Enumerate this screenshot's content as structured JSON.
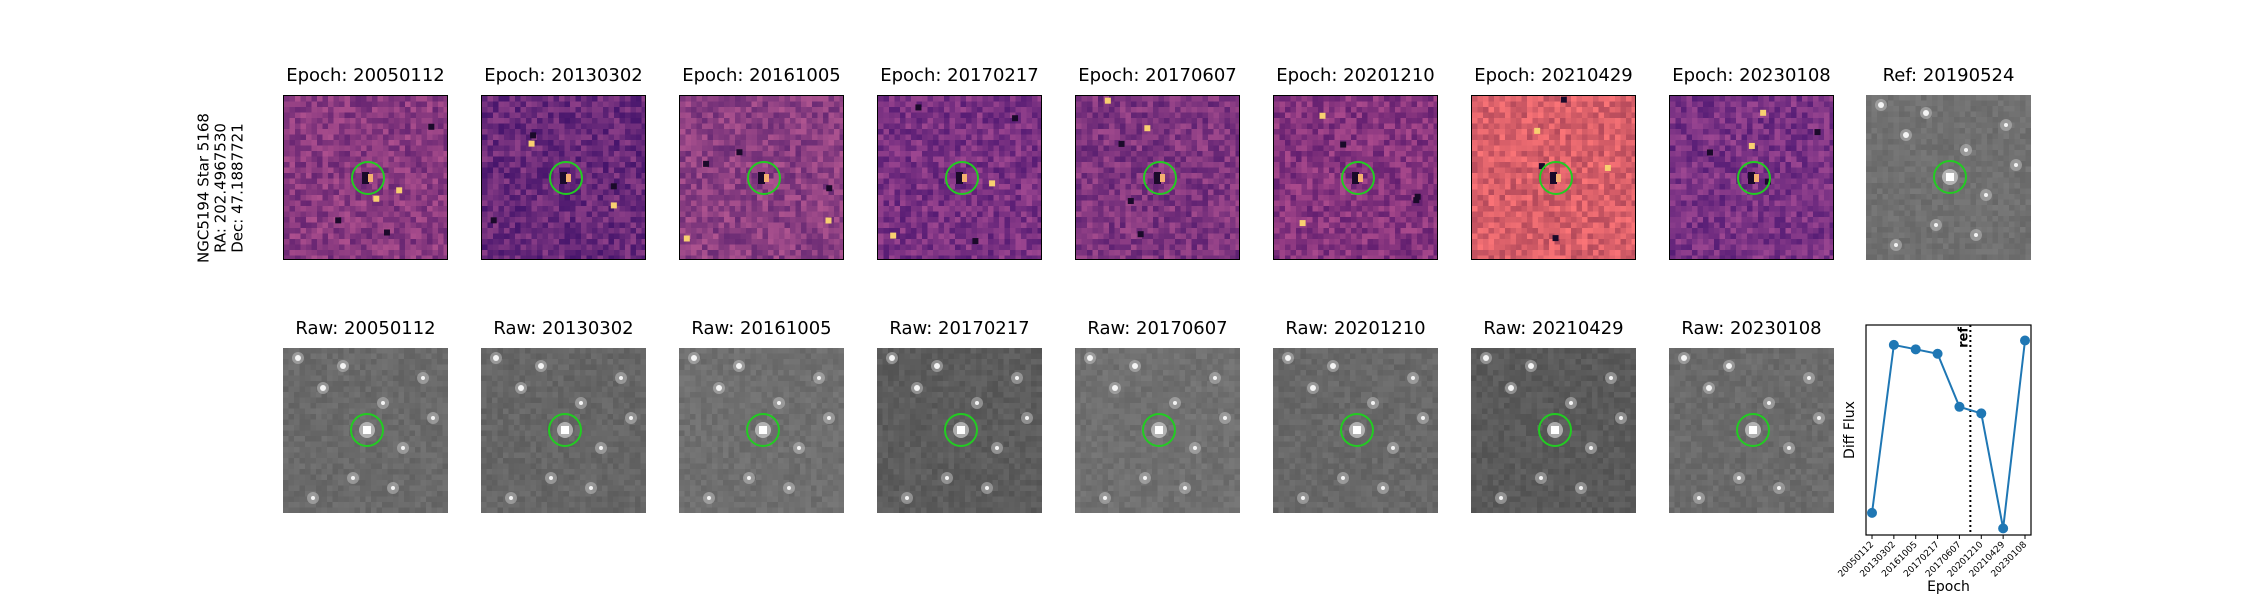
{
  "row_label": {
    "line1": "NGC5194 Star 5168",
    "line2": "RA: 202.4967530",
    "line3": "Dec: 47.1887721"
  },
  "diff_titles": [
    "Epoch: 20050112",
    "Epoch: 20130302",
    "Epoch: 20161005",
    "Epoch: 20170217",
    "Epoch: 20170607",
    "Epoch: 20201210",
    "Epoch: 20210429",
    "Epoch: 20230108"
  ],
  "ref_title": "Ref: 20190524",
  "raw_titles": [
    "Raw: 20050112",
    "Raw: 20130302",
    "Raw: 20161005",
    "Raw: 20170217",
    "Raw: 20170607",
    "Raw: 20201210",
    "Raw: 20210429",
    "Raw: 20230108"
  ],
  "colors": {
    "circle": "#22cc22",
    "series": "#1f77b4",
    "magma_base": [
      "#8a3a80",
      "#6a2a7a",
      "#8c3f82",
      "#7a3182",
      "#7f357f",
      "#86347e",
      "#d85f69",
      "#7a3284"
    ],
    "gray_base": [
      "#6a6a6a",
      "#666666",
      "#6f6f6f",
      "#5c5c5c",
      "#707070",
      "#686868",
      "#5a5a5a",
      "#6b6b6b"
    ]
  },
  "chart_data": {
    "type": "line",
    "title": "",
    "xlabel": "Epoch",
    "ylabel": "Diff Flux",
    "categories": [
      "20050112",
      "20130302",
      "20161005",
      "20170217",
      "20170607",
      "20201210",
      "20210429",
      "20230108"
    ],
    "values": [
      0.1,
      0.86,
      0.84,
      0.82,
      0.58,
      0.55,
      0.03,
      0.88
    ],
    "ylim": [
      0.0,
      0.95
    ],
    "ref_marker": {
      "label": "ref",
      "x_between": [
        "20170607",
        "20201210"
      ],
      "style": "dotted"
    },
    "grid": false,
    "legend": "none",
    "ytick_labels": false
  }
}
